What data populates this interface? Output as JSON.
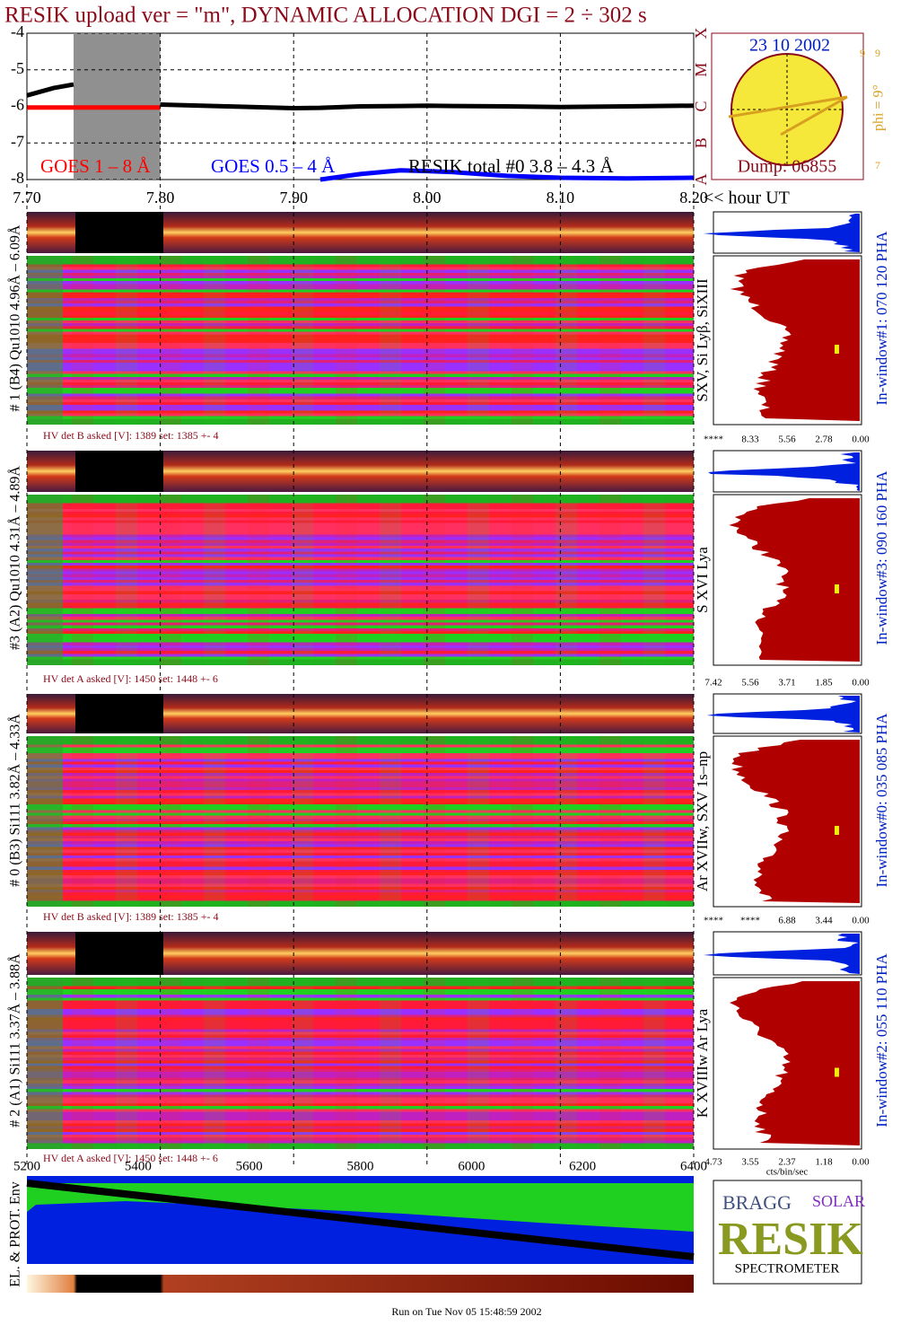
{
  "title": "RESIK upload ver = \"m\", DYNAMIC ALLOCATION  DGI =   2 ÷ 302 s",
  "chart_data": {
    "type": "line",
    "x": [
      7.7,
      7.72,
      7.735,
      7.76,
      7.8,
      7.85,
      7.9,
      7.92,
      7.95,
      7.98,
      8.0,
      8.02,
      8.06,
      8.1,
      8.15,
      8.2
    ],
    "series": [
      {
        "name": "GOES 1 – 8 Å",
        "color": "#ff0000",
        "values": [
          -6.03,
          -6.03,
          -6.03,
          -6.03,
          -6.03,
          null,
          null,
          null,
          null,
          null,
          null,
          null,
          null,
          null,
          null,
          null
        ]
      },
      {
        "name": "GOES 0.5 – 4 Å",
        "color": "#0000ff",
        "values": [
          null,
          null,
          null,
          null,
          null,
          null,
          null,
          -8.0,
          -7.85,
          -7.75,
          -7.77,
          -7.8,
          -7.9,
          -7.95,
          -7.97,
          -7.95
        ]
      },
      {
        "name": "RESIK total #0  3.8 – 4.3 Å",
        "color": "#000000",
        "values": [
          -5.7,
          -5.5,
          -5.4,
          null,
          -5.95,
          -6.0,
          -6.05,
          -6.04,
          -6.0,
          -5.99,
          -5.98,
          -5.99,
          -6.0,
          -6.02,
          -6.0,
          -5.98
        ]
      }
    ],
    "shade": [
      7.735,
      7.8
    ],
    "xlim": [
      7.7,
      8.2
    ],
    "xticks": [
      {
        "value": 7.7,
        "label": "7.70"
      },
      {
        "value": 7.8,
        "label": "7.80"
      },
      {
        "value": 7.9,
        "label": "7.90"
      },
      {
        "value": 8.0,
        "label": "8.00"
      },
      {
        "value": 8.1,
        "label": "8.10"
      },
      {
        "value": 8.2,
        "label": "8.20"
      }
    ],
    "xlabel": "<< hour UT",
    "ylim": [
      -8,
      -4
    ],
    "yticks": [
      -8,
      -7,
      -6,
      -5,
      -4
    ],
    "y2ticks": [
      {
        "value": -8,
        "label": "A"
      },
      {
        "value": -7,
        "label": "B"
      },
      {
        "value": -6,
        "label": "C"
      },
      {
        "value": -5,
        "label": "M"
      },
      {
        "value": -4,
        "label": "X"
      }
    ],
    "grid": true
  },
  "inset": {
    "date": "23 10 2002",
    "dump": "Dump: 06855",
    "phi": "phi =  9°",
    "phi_ticks": [
      "9",
      "9",
      "7"
    ]
  },
  "panels": [
    {
      "label": "# 1 (B4) Qu1010 4.96Å – 6.09Å",
      "hv": "HV det B asked [V]:  1389 set:  1385 +-    4",
      "line_id": "SXV, Si Lyβ, SiXIII",
      "pha": "In-window#1:  070 120 PHA",
      "hist_ticks": [
        "****",
        "8.33",
        "5.56",
        "2.78",
        "0.00"
      ]
    },
    {
      "label": "#3 (A2) Qu1010  4.31Å – 4.89Å",
      "hv": "HV det A asked [V]:  1450 set:  1448 +-    6",
      "line_id": "S XVI Lya",
      "pha": "In-window#3:  090 160 PHA",
      "hist_ticks": [
        "7.42",
        "5.56",
        "3.71",
        "1.85",
        "0.00"
      ]
    },
    {
      "label": "# 0 (B3) Si111  3.82Å – 4.33Å",
      "hv": "HV det B asked [V]:  1389 set:  1385 +-    4",
      "line_id": "Ar XVIIw,  SXV 1s–np",
      "pha": "In-window#0:  035 085 PHA",
      "hist_ticks": [
        "****",
        "****",
        "6.88",
        "3.44",
        "0.00"
      ]
    },
    {
      "label": "# 2 (A1) Si111  3.37Å –  3.88Å",
      "hv": "HV det A asked [V]:  1450 set:  1448 +-    6",
      "line_id": "K XVIIIw  Ar Lya",
      "pha": "In-window#2:  055 110 PHA",
      "hist_ticks": [
        "4.73",
        "3.55",
        "2.37",
        "1.18",
        "0.00"
      ]
    }
  ],
  "channel_ticks": [
    "5200",
    "5400",
    "5600",
    "5800",
    "6000",
    "6200",
    "6400"
  ],
  "hist_unit": "cts/bin/sec",
  "env_label": "EL. & PROT. Env",
  "logo": {
    "bragg": "BRAGG",
    "resik": "RESIK",
    "solar": "SOLAR",
    "spectrometer": "SPECTROMETER"
  },
  "footer": "Run on Tue Nov 05 15:48:59 2002"
}
